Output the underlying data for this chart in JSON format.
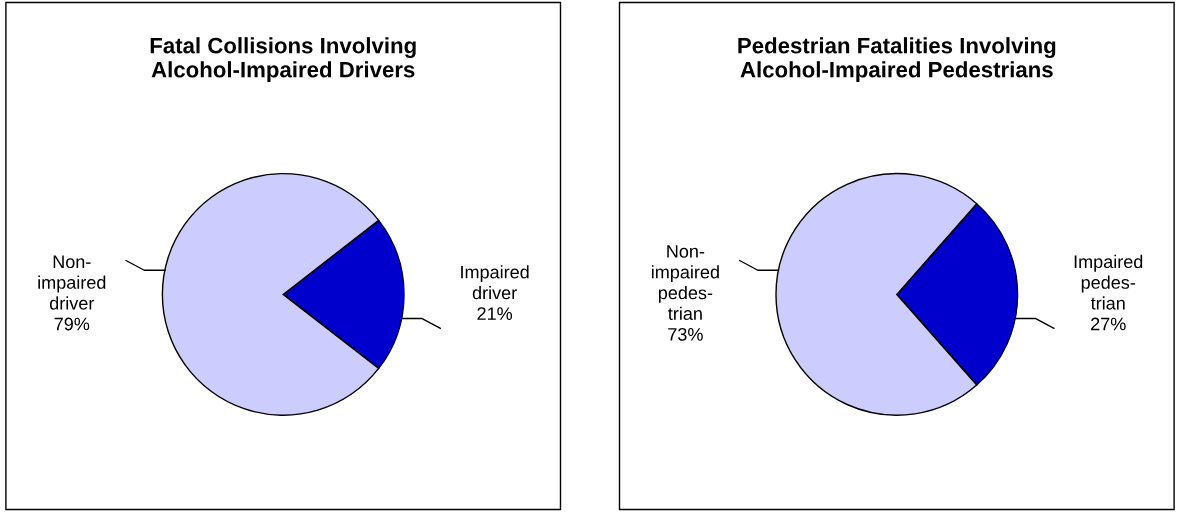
{
  "chart_data": [
    {
      "type": "pie",
      "title": "Fatal Collisions Involving\nAlcohol-Impaired Drivers",
      "categories": [
        "Impaired\ndriver",
        "Non-\nimpaired\ndriver"
      ],
      "values": [
        21,
        79
      ],
      "value_labels": [
        "21%",
        "79%"
      ],
      "colors": [
        "#0000cc",
        "#ccccff"
      ]
    },
    {
      "type": "pie",
      "title": "Pedestrian Fatalities Involving\nAlcohol-Impaired Pedestrians",
      "categories": [
        "Impaired\npedes-\ntrian",
        "Non-\nimpaired\npedes-\ntrian"
      ],
      "values": [
        27,
        73
      ],
      "value_labels": [
        "27%",
        "73%"
      ],
      "colors": [
        "#0000cc",
        "#ccccff"
      ]
    }
  ]
}
